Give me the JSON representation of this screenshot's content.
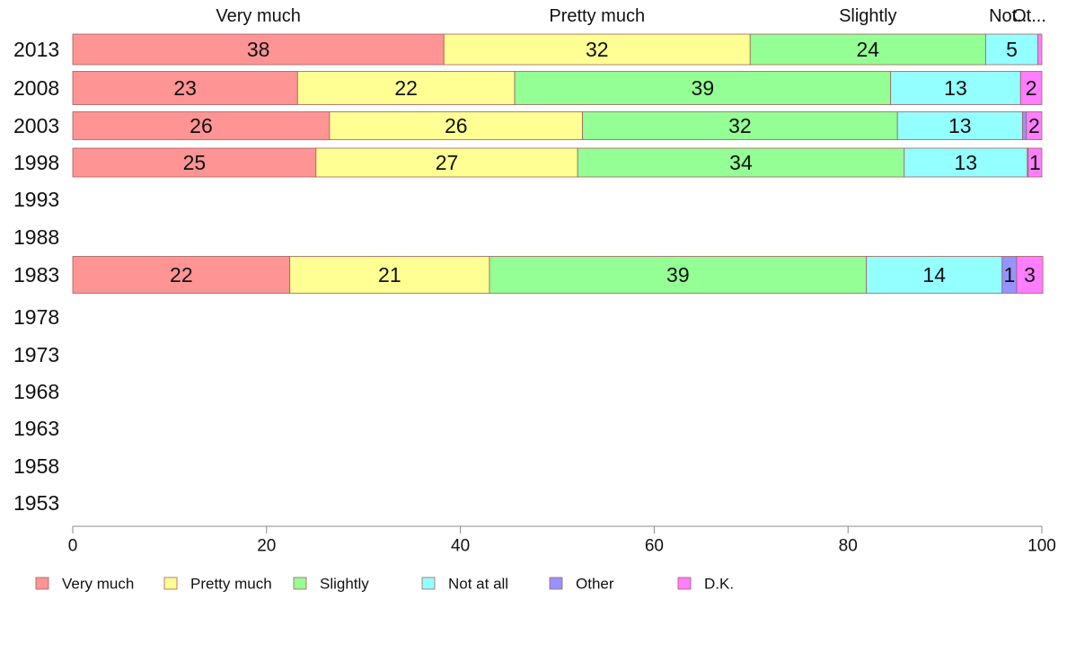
{
  "chart_data": {
    "type": "bar",
    "orientation": "horizontal",
    "stacked": true,
    "title": "",
    "xlabel": "",
    "ylabel": "",
    "xlim": [
      0,
      100
    ],
    "xticks": [
      0,
      20,
      40,
      60,
      80,
      100
    ],
    "grid": false,
    "legend_position": "bottom",
    "categories": [
      "2013",
      "2008",
      "2003",
      "1998",
      "1993",
      "1988",
      "1983",
      "1978",
      "1973",
      "1968",
      "1963",
      "1958",
      "1953"
    ],
    "top_labels": [
      "Very much",
      "Pretty much",
      "Slightly",
      "Not...",
      "Ot..."
    ],
    "series": [
      {
        "name": "Very much",
        "color": "#ff9494",
        "values": [
          38.3,
          23.2,
          26.5,
          25.1,
          null,
          null,
          22.4,
          null,
          null,
          null,
          null,
          null,
          null
        ],
        "labels": [
          "38",
          "23",
          "26",
          "25",
          "",
          "",
          "22",
          "",
          "",
          "",
          "",
          "",
          ""
        ]
      },
      {
        "name": "Pretty much",
        "color": "#ffff94",
        "values": [
          31.6,
          22.4,
          26.1,
          27.0,
          null,
          null,
          20.6,
          null,
          null,
          null,
          null,
          null,
          null
        ],
        "labels": [
          "32",
          "22",
          "26",
          "27",
          "",
          "",
          "21",
          "",
          "",
          "",
          "",
          "",
          ""
        ]
      },
      {
        "name": "Slightly",
        "color": "#94ff94",
        "values": [
          24.3,
          38.8,
          32.5,
          33.7,
          null,
          null,
          38.9,
          null,
          null,
          null,
          null,
          null,
          null
        ],
        "labels": [
          "24",
          "39",
          "32",
          "34",
          "",
          "",
          "39",
          "",
          "",
          "",
          "",
          "",
          ""
        ]
      },
      {
        "name": "Not at all",
        "color": "#94ffff",
        "values": [
          5.4,
          13.4,
          12.9,
          12.7,
          null,
          null,
          14.0,
          null,
          null,
          null,
          null,
          null,
          null
        ],
        "labels": [
          "5",
          "13",
          "13",
          "13",
          "",
          "",
          "14",
          "",
          "",
          "",
          "",
          "",
          ""
        ]
      },
      {
        "name": "Other",
        "color": "#9494ff",
        "values": [
          0.0,
          0.0,
          0.4,
          0.1,
          null,
          null,
          1.5,
          null,
          null,
          null,
          null,
          null,
          null
        ],
        "labels": [
          "",
          "",
          "",
          "",
          "",
          "",
          "1",
          "",
          "",
          "",
          "",
          "",
          ""
        ]
      },
      {
        "name": "D.K.",
        "color": "#ff7eff",
        "values": [
          0.4,
          2.2,
          1.6,
          1.4,
          null,
          null,
          2.7,
          null,
          null,
          null,
          null,
          null,
          null
        ],
        "labels": [
          "",
          "2",
          "2",
          "1",
          "",
          "",
          "3",
          "",
          "",
          "",
          "",
          "",
          ""
        ]
      }
    ]
  }
}
